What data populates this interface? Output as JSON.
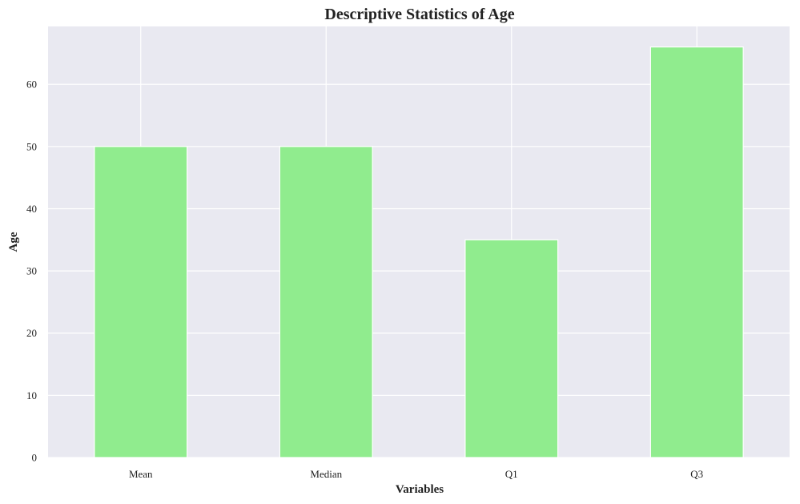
{
  "colors": {
    "plot_background": "#e9e9f1",
    "grid": "#ffffff",
    "bar_fill": "#90ec8e",
    "bar_edge": "#ffffff",
    "text": "#222222"
  },
  "chart_data": {
    "type": "bar",
    "title": "Descriptive Statistics of Age",
    "xlabel": "Variables",
    "ylabel": "Age",
    "categories": [
      "Mean",
      "Median",
      "Q1",
      "Q3"
    ],
    "values": [
      50,
      50,
      35,
      66
    ],
    "ylim": [
      0,
      69.3
    ],
    "yticks": [
      0,
      10,
      20,
      30,
      40,
      50,
      60
    ],
    "grid": true,
    "legend": "none"
  }
}
